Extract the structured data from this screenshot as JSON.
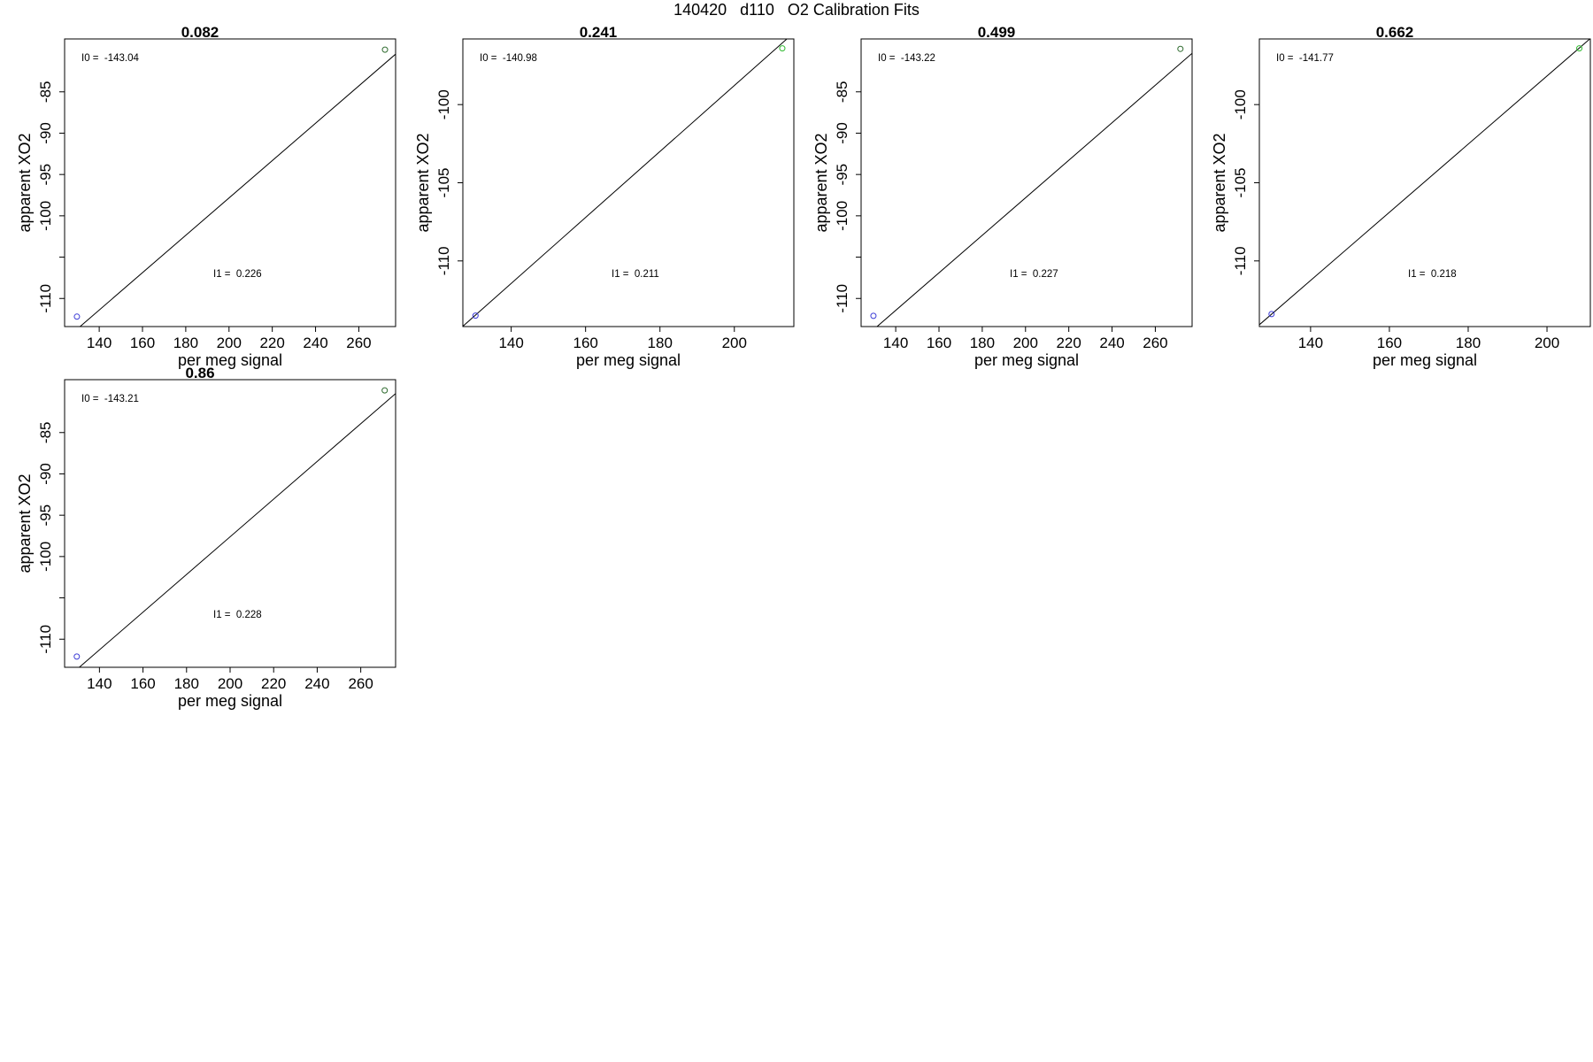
{
  "figure": {
    "title": "140420   d110   O2 Calibration Fits"
  },
  "colors": {
    "axis": "#000000",
    "fit_line": "#000000",
    "low_point": "#3b3bd6",
    "high_point_green": "#33bb33",
    "high_point_dark": "#2f6b2f"
  },
  "chart_data": [
    {
      "type": "scatter",
      "title": "0.082",
      "xlabel": "per meg signal",
      "ylabel": "apparent XO2",
      "xlim": [
        124,
        277
      ],
      "ylim": [
        -113.4,
        -78.6
      ],
      "xticks": [
        140,
        160,
        180,
        200,
        220,
        240,
        260
      ],
      "yticks": [
        -110,
        -105,
        -100,
        -95,
        -90,
        -85
      ],
      "ytick_labels": [
        "-110",
        "",
        "-100",
        "-95",
        "-90",
        "-85"
      ],
      "points": [
        {
          "x": 129.7,
          "y": -112.2,
          "color": "low_point"
        },
        {
          "x": 272.1,
          "y": -79.9,
          "color": "high_point_dark"
        }
      ],
      "fit_line": {
        "intercept": -143.04,
        "slope": 0.226
      },
      "annotations": {
        "i0": "I0 =  -143.04",
        "i1": "I1 =  0.226"
      }
    },
    {
      "type": "scatter",
      "title": "0.241",
      "xlabel": "per meg signal",
      "ylabel": "apparent XO2",
      "xlim": [
        127,
        216
      ],
      "ylim": [
        -114.2,
        -95.8
      ],
      "xticks": [
        140,
        160,
        180,
        200
      ],
      "yticks": [
        -110,
        -105,
        -100
      ],
      "ytick_labels": [
        "-110",
        "-105",
        "-100"
      ],
      "points": [
        {
          "x": 130.4,
          "y": -113.5,
          "color": "low_point"
        },
        {
          "x": 212.9,
          "y": -96.4,
          "color": "high_point_green"
        }
      ],
      "fit_line": {
        "intercept": -140.98,
        "slope": 0.211
      },
      "annotations": {
        "i0": "I0 =  -140.98",
        "i1": "I1 =  0.211"
      }
    },
    {
      "type": "scatter",
      "title": "0.499",
      "xlabel": "per meg signal",
      "ylabel": "apparent XO2",
      "xlim": [
        124,
        277
      ],
      "ylim": [
        -113.4,
        -78.6
      ],
      "xticks": [
        140,
        160,
        180,
        200,
        220,
        240,
        260
      ],
      "yticks": [
        -110,
        -105,
        -100,
        -95,
        -90,
        -85
      ],
      "ytick_labels": [
        "-110",
        "",
        "-100",
        "-95",
        "-90",
        "-85"
      ],
      "points": [
        {
          "x": 129.7,
          "y": -112.1,
          "color": "low_point"
        },
        {
          "x": 271.6,
          "y": -79.8,
          "color": "high_point_dark"
        }
      ],
      "fit_line": {
        "intercept": -143.22,
        "slope": 0.227
      },
      "annotations": {
        "i0": "I0 =  -143.22",
        "i1": "I1 =  0.227"
      }
    },
    {
      "type": "scatter",
      "title": "0.662",
      "xlabel": "per meg signal",
      "ylabel": "apparent XO2",
      "xlim": [
        127,
        211
      ],
      "ylim": [
        -114.2,
        -95.8
      ],
      "xticks": [
        140,
        160,
        180,
        200
      ],
      "yticks": [
        -110,
        -105,
        -100
      ],
      "ytick_labels": [
        "-110",
        "-105",
        "-100"
      ],
      "points": [
        {
          "x": 130.1,
          "y": -113.4,
          "color": "low_point"
        },
        {
          "x": 208.2,
          "y": -96.4,
          "color": "high_point_green"
        }
      ],
      "fit_line": {
        "intercept": -141.77,
        "slope": 0.218
      },
      "annotations": {
        "i0": "I0 =  -141.77",
        "i1": "I1 =  0.218"
      }
    },
    {
      "type": "scatter",
      "title": "0.86",
      "xlabel": "per meg signal",
      "ylabel": "apparent XO2",
      "xlim": [
        124,
        276
      ],
      "ylim": [
        -113.4,
        -78.6
      ],
      "xticks": [
        140,
        160,
        180,
        200,
        220,
        240,
        260
      ],
      "yticks": [
        -110,
        -105,
        -100,
        -95,
        -90,
        -85
      ],
      "ytick_labels": [
        "-110",
        "",
        "-100",
        "-95",
        "-90",
        "-85"
      ],
      "points": [
        {
          "x": 129.6,
          "y": -112.1,
          "color": "low_point"
        },
        {
          "x": 271.0,
          "y": -79.9,
          "color": "high_point_dark"
        }
      ],
      "fit_line": {
        "intercept": -143.21,
        "slope": 0.228
      },
      "annotations": {
        "i0": "I0 =  -143.21",
        "i1": "I1 =  0.228"
      }
    }
  ]
}
